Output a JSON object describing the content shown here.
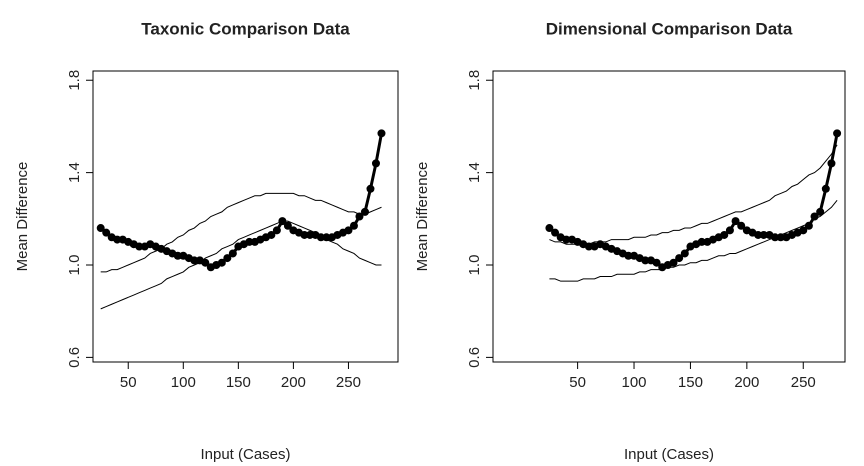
{
  "chart_data": [
    {
      "type": "line",
      "title": "Taxonic Comparison Data",
      "xlabel": "Input (Cases)",
      "ylabel": "Mean Difference",
      "x": [
        25,
        30,
        35,
        40,
        45,
        50,
        55,
        60,
        65,
        70,
        75,
        80,
        85,
        90,
        95,
        100,
        105,
        110,
        115,
        120,
        125,
        130,
        135,
        140,
        145,
        150,
        155,
        160,
        165,
        170,
        175,
        180,
        185,
        190,
        195,
        200,
        205,
        210,
        215,
        220,
        225,
        230,
        235,
        240,
        245,
        250,
        255,
        260,
        265,
        270,
        275,
        280
      ],
      "xlim": [
        18,
        295
      ],
      "xticks": [
        50,
        100,
        150,
        200,
        250
      ],
      "ylim": [
        0.58,
        1.84
      ],
      "yticks": [
        0.6,
        {
          "value": 1,
          "label": "1.0"
        },
        1.4,
        1.8
      ],
      "series": [
        {
          "color": "#000000",
          "line_width": 3,
          "marker": "circle",
          "values": [
            1.16,
            1.14,
            1.12,
            1.11,
            1.11,
            1.1,
            1.09,
            1.08,
            1.08,
            1.09,
            1.08,
            1.07,
            1.06,
            1.05,
            1.04,
            1.04,
            1.03,
            1.02,
            1.02,
            1.01,
            0.99,
            1.0,
            1.01,
            1.03,
            1.05,
            1.08,
            1.09,
            1.1,
            1.1,
            1.11,
            1.12,
            1.13,
            1.15,
            1.19,
            1.17,
            1.15,
            1.14,
            1.13,
            1.13,
            1.13,
            1.12,
            1.12,
            1.12,
            1.13,
            1.14,
            1.15,
            1.17,
            1.21,
            1.23,
            1.33,
            1.44,
            1.57
          ]
        },
        {
          "color": "#000000",
          "line_width": 1,
          "values": [
            0.97,
            0.97,
            0.98,
            0.98,
            0.99,
            1.0,
            1.01,
            1.02,
            1.03,
            1.05,
            1.06,
            1.07,
            1.09,
            1.1,
            1.12,
            1.13,
            1.15,
            1.16,
            1.18,
            1.19,
            1.21,
            1.22,
            1.23,
            1.25,
            1.26,
            1.27,
            1.28,
            1.29,
            1.3,
            1.3,
            1.31,
            1.31,
            1.31,
            1.31,
            1.31,
            1.31,
            1.3,
            1.3,
            1.29,
            1.28,
            1.28,
            1.27,
            1.26,
            1.25,
            1.24,
            1.23,
            1.23,
            1.22,
            1.22,
            1.23,
            1.24,
            1.25
          ]
        },
        {
          "color": "#000000",
          "line_width": 1,
          "values": [
            0.81,
            0.82,
            0.83,
            0.84,
            0.85,
            0.86,
            0.87,
            0.88,
            0.89,
            0.9,
            0.91,
            0.92,
            0.94,
            0.95,
            0.96,
            0.97,
            0.99,
            1.0,
            1.01,
            1.03,
            1.04,
            1.05,
            1.07,
            1.08,
            1.09,
            1.11,
            1.12,
            1.13,
            1.14,
            1.15,
            1.16,
            1.17,
            1.18,
            1.19,
            1.19,
            1.18,
            1.17,
            1.16,
            1.15,
            1.14,
            1.13,
            1.11,
            1.1,
            1.09,
            1.07,
            1.06,
            1.05,
            1.03,
            1.02,
            1.01,
            1.0,
            1.0
          ]
        }
      ]
    },
    {
      "type": "line",
      "title": "Dimensional Comparison Data",
      "xlabel": "Input (Cases)",
      "ylabel": "Mean Difference",
      "x": [
        25,
        30,
        35,
        40,
        45,
        50,
        55,
        60,
        65,
        70,
        75,
        80,
        85,
        90,
        95,
        100,
        105,
        110,
        115,
        120,
        125,
        130,
        135,
        140,
        145,
        150,
        155,
        160,
        165,
        170,
        175,
        180,
        185,
        190,
        195,
        200,
        205,
        210,
        215,
        220,
        225,
        230,
        235,
        240,
        245,
        250,
        255,
        260,
        265,
        270,
        275,
        280
      ],
      "xlim": [
        -25,
        287
      ],
      "xticks": [
        50,
        100,
        150,
        200,
        250
      ],
      "ylim": [
        0.58,
        1.84
      ],
      "yticks": [
        0.6,
        {
          "value": 1,
          "label": "1.0"
        },
        1.4,
        1.8
      ],
      "series": [
        {
          "color": "#000000",
          "line_width": 3,
          "marker": "circle",
          "values": [
            1.16,
            1.14,
            1.12,
            1.11,
            1.11,
            1.1,
            1.09,
            1.08,
            1.08,
            1.09,
            1.08,
            1.07,
            1.06,
            1.05,
            1.04,
            1.04,
            1.03,
            1.02,
            1.02,
            1.01,
            0.99,
            1.0,
            1.01,
            1.03,
            1.05,
            1.08,
            1.09,
            1.1,
            1.1,
            1.11,
            1.12,
            1.13,
            1.15,
            1.19,
            1.17,
            1.15,
            1.14,
            1.13,
            1.13,
            1.13,
            1.12,
            1.12,
            1.12,
            1.13,
            1.14,
            1.15,
            1.17,
            1.21,
            1.23,
            1.33,
            1.44,
            1.57
          ]
        },
        {
          "color": "#000000",
          "line_width": 1,
          "values": [
            1.11,
            1.1,
            1.1,
            1.09,
            1.09,
            1.09,
            1.09,
            1.09,
            1.1,
            1.1,
            1.1,
            1.11,
            1.11,
            1.11,
            1.11,
            1.12,
            1.12,
            1.12,
            1.13,
            1.13,
            1.14,
            1.14,
            1.15,
            1.15,
            1.16,
            1.16,
            1.17,
            1.18,
            1.18,
            1.19,
            1.2,
            1.21,
            1.22,
            1.23,
            1.23,
            1.24,
            1.25,
            1.26,
            1.27,
            1.28,
            1.3,
            1.31,
            1.32,
            1.34,
            1.35,
            1.37,
            1.39,
            1.4,
            1.42,
            1.45,
            1.48,
            1.52
          ]
        },
        {
          "color": "#000000",
          "line_width": 1,
          "values": [
            0.94,
            0.94,
            0.93,
            0.93,
            0.93,
            0.93,
            0.94,
            0.94,
            0.94,
            0.95,
            0.95,
            0.95,
            0.96,
            0.96,
            0.96,
            0.96,
            0.97,
            0.97,
            0.98,
            0.98,
            0.98,
            0.99,
            0.99,
            1.0,
            1.0,
            1.01,
            1.01,
            1.02,
            1.02,
            1.03,
            1.04,
            1.04,
            1.05,
            1.05,
            1.06,
            1.07,
            1.08,
            1.09,
            1.1,
            1.11,
            1.12,
            1.13,
            1.14,
            1.15,
            1.16,
            1.17,
            1.18,
            1.2,
            1.21,
            1.23,
            1.25,
            1.28
          ]
        }
      ]
    }
  ]
}
